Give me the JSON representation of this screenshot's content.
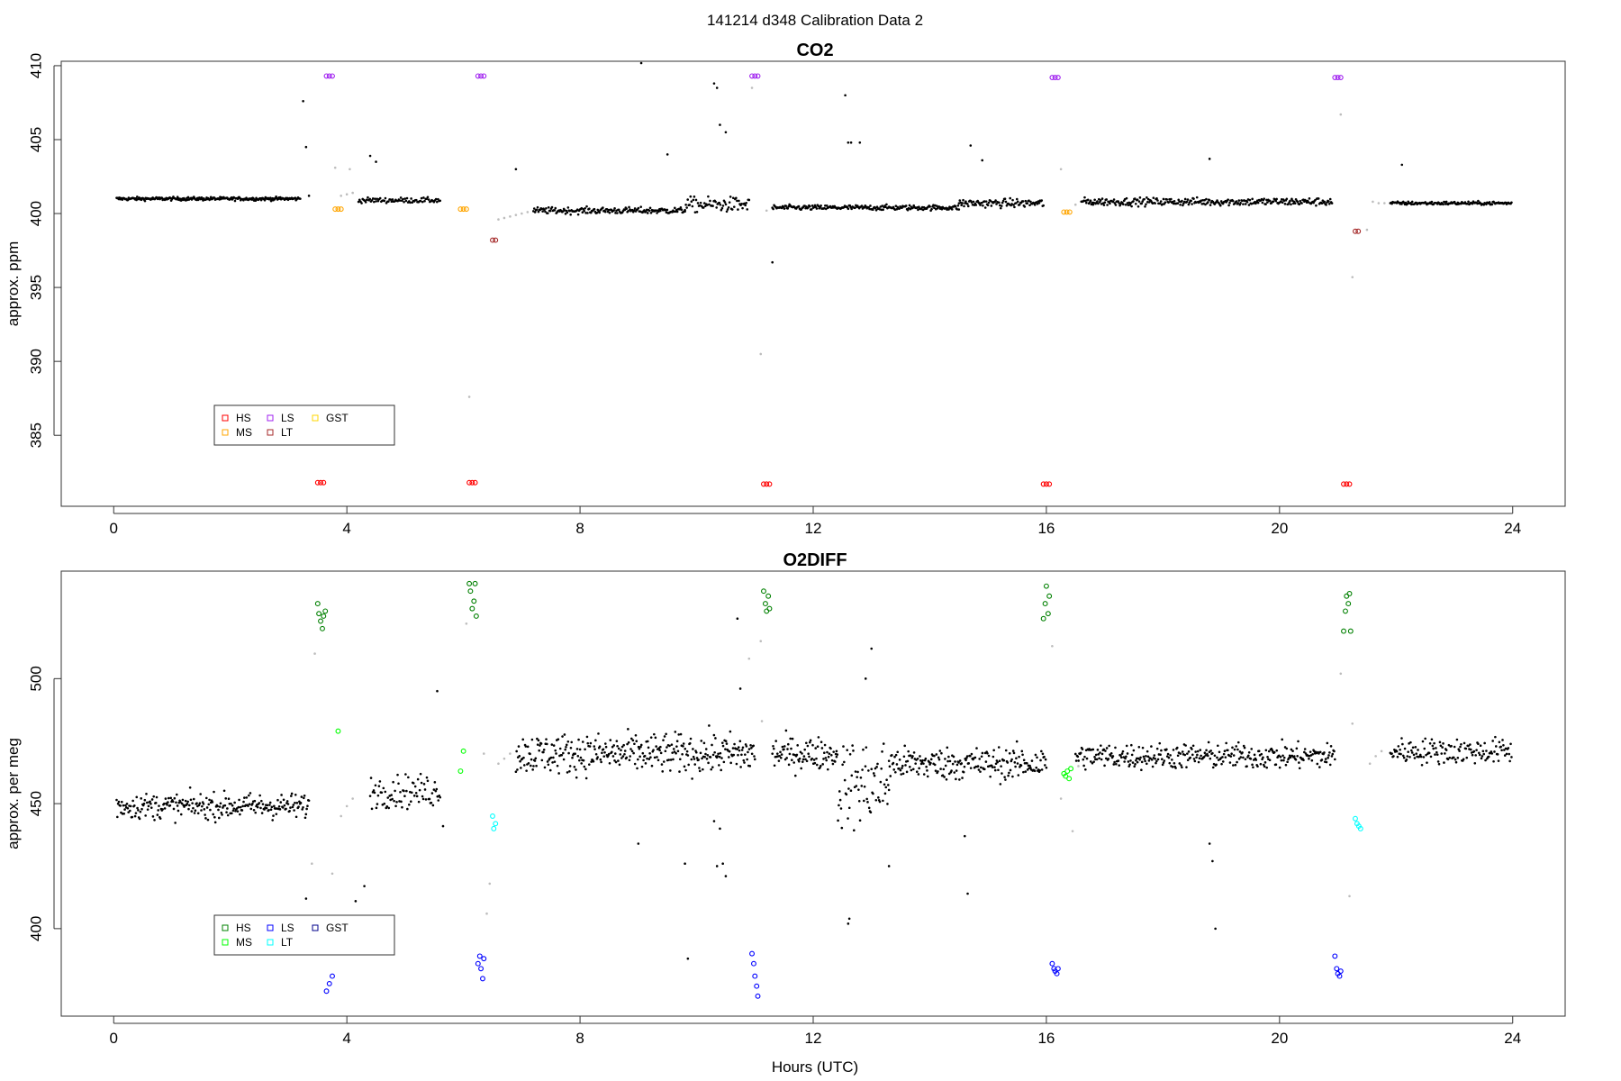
{
  "figure": {
    "suptitle": "141214   d348   Calibration Data 2",
    "xlabel": "Hours (UTC)"
  },
  "chart_data": [
    {
      "type": "scatter",
      "title": "CO2",
      "ylabel": "approx. ppm",
      "xlim": [
        -0.9,
        24.9
      ],
      "ylim": [
        380.2,
        410.3
      ],
      "xticks": [
        "0",
        "4",
        "8",
        "12",
        "16",
        "20",
        "24"
      ],
      "yticks": [
        "385",
        "390",
        "395",
        "400",
        "405",
        "410"
      ],
      "legend": {
        "position": "bottom-left",
        "columns": 3,
        "items": [
          {
            "label": "HS",
            "color": "#ff0000"
          },
          {
            "label": "MS",
            "color": "#ffa500"
          },
          {
            "label": "LS",
            "color": "#a020f0"
          },
          {
            "label": "LT",
            "color": "#a52a2a"
          },
          {
            "label": "GST",
            "color": "#ffd700"
          }
        ]
      },
      "series": [
        {
          "name": "HS",
          "color": "#ff0000",
          "marker": "circle",
          "x": [
            3.5,
            3.55,
            3.6,
            6.1,
            6.15,
            6.2,
            11.15,
            11.2,
            11.25,
            15.95,
            16.0,
            16.05,
            21.1,
            21.15,
            21.2
          ],
          "y": [
            381.8,
            381.8,
            381.8,
            381.8,
            381.8,
            381.8,
            381.7,
            381.7,
            381.7,
            381.7,
            381.7,
            381.7,
            381.7,
            381.7,
            381.7
          ]
        },
        {
          "name": "MS",
          "color": "#ffa500",
          "marker": "circle",
          "x": [
            3.8,
            3.85,
            3.9,
            5.95,
            6.0,
            6.05,
            16.3,
            16.35,
            16.4
          ],
          "y": [
            400.3,
            400.3,
            400.3,
            400.3,
            400.3,
            400.3,
            400.1,
            400.1,
            400.1
          ]
        },
        {
          "name": "LS",
          "color": "#a020f0",
          "marker": "circle",
          "x": [
            3.65,
            3.7,
            3.75,
            6.25,
            6.3,
            6.35,
            10.95,
            11.0,
            11.05,
            16.1,
            16.15,
            16.2,
            20.95,
            21.0,
            21.05
          ],
          "y": [
            409.3,
            409.3,
            409.3,
            409.3,
            409.3,
            409.3,
            409.3,
            409.3,
            409.3,
            409.2,
            409.2,
            409.2,
            409.2,
            409.2,
            409.2
          ]
        },
        {
          "name": "LT",
          "color": "#a52a2a",
          "marker": "circle",
          "x": [
            6.5,
            6.55,
            21.3,
            21.35
          ],
          "y": [
            398.2,
            398.2,
            398.8,
            398.8
          ]
        },
        {
          "name": "data",
          "color": "#000000",
          "marker": "dot",
          "segments": [
            {
              "x0": 0.05,
              "x1": 3.2,
              "level": 401.0,
              "n": 260,
              "noise": 0.08
            },
            {
              "x0": 4.2,
              "x1": 5.6,
              "level": 400.9,
              "n": 80,
              "noise": 0.12
            },
            {
              "x0": 7.2,
              "x1": 9.8,
              "level": 400.2,
              "n": 180,
              "noise": 0.15
            },
            {
              "x0": 9.8,
              "x1": 10.9,
              "level": 400.6,
              "n": 70,
              "noise": 0.35
            },
            {
              "x0": 11.3,
              "x1": 14.5,
              "level": 400.4,
              "n": 220,
              "noise": 0.12
            },
            {
              "x0": 14.5,
              "x1": 15.95,
              "level": 400.7,
              "n": 100,
              "noise": 0.2
            },
            {
              "x0": 16.6,
              "x1": 20.9,
              "level": 400.8,
              "n": 300,
              "noise": 0.18
            },
            {
              "x0": 21.9,
              "x1": 23.98,
              "level": 400.7,
              "n": 150,
              "noise": 0.08
            }
          ],
          "outliers": {
            "x": [
              3.25,
              3.3,
              3.35,
              4.4,
              4.5,
              6.9,
              9.05,
              9.5,
              10.3,
              10.35,
              10.4,
              10.5,
              11.3,
              12.6,
              12.65,
              12.8,
              12.55,
              14.7,
              14.9,
              18.8,
              22.1
            ],
            "y": [
              407.6,
              404.5,
              401.2,
              403.9,
              403.5,
              403.0,
              410.2,
              404.0,
              408.8,
              408.5,
              406.0,
              405.5,
              396.7,
              404.8,
              404.8,
              404.8,
              408.0,
              404.6,
              403.6,
              403.7,
              403.3
            ]
          }
        },
        {
          "name": "transition",
          "color": "#bdbdbd",
          "marker": "dot",
          "x": [
            3.9,
            4.0,
            4.1,
            6.6,
            6.7,
            6.8,
            6.9,
            7.0,
            7.1,
            11.1,
            11.2,
            16.5,
            16.6,
            21.5,
            21.6,
            21.7,
            21.8,
            10.95,
            6.1,
            21.25,
            16.25,
            3.8,
            4.05,
            21.05
          ],
          "y": [
            401.2,
            401.3,
            401.4,
            399.6,
            399.7,
            399.8,
            399.9,
            400.0,
            400.1,
            390.5,
            400.2,
            400.6,
            400.8,
            398.9,
            400.8,
            400.7,
            400.7,
            408.5,
            387.6,
            395.7,
            403.0,
            403.1,
            403.0,
            406.7
          ]
        }
      ]
    },
    {
      "type": "scatter",
      "title": "O2DIFF",
      "ylabel": "approx. per meg",
      "xlim": [
        -0.9,
        24.9
      ],
      "ylim": [
        365,
        543
      ],
      "xticks": [
        "0",
        "4",
        "8",
        "12",
        "16",
        "20",
        "24"
      ],
      "yticks": [
        "400",
        "450",
        "500"
      ],
      "legend": {
        "position": "bottom-left",
        "columns": 3,
        "items": [
          {
            "label": "HS",
            "color": "#008000"
          },
          {
            "label": "MS",
            "color": "#00ff00"
          },
          {
            "label": "LS",
            "color": "#0000ff"
          },
          {
            "label": "LT",
            "color": "#00ffff"
          },
          {
            "label": "GST",
            "color": "#00008b"
          }
        ]
      },
      "series": [
        {
          "name": "HS",
          "color": "#008000",
          "marker": "circle",
          "x": [
            3.5,
            3.52,
            3.55,
            3.58,
            3.6,
            3.63,
            6.1,
            6.12,
            6.15,
            6.18,
            6.2,
            6.22,
            11.15,
            11.18,
            11.2,
            11.23,
            11.25,
            15.95,
            15.98,
            16.0,
            16.03,
            16.05,
            21.1,
            21.13,
            21.15,
            21.18,
            21.2,
            21.22
          ],
          "y": [
            530,
            526,
            523,
            520,
            525,
            527,
            538,
            535,
            528,
            531,
            538,
            525,
            535,
            530,
            527,
            533,
            528,
            524,
            530,
            537,
            526,
            533,
            519,
            527,
            533,
            530,
            534,
            519
          ],
          "hollow": true
        },
        {
          "name": "MS",
          "color": "#00ff00",
          "marker": "circle",
          "x": [
            3.85,
            5.95,
            6.0,
            16.3,
            16.33,
            16.36,
            16.39,
            16.42
          ],
          "y": [
            479,
            463,
            471,
            462,
            461,
            463,
            460,
            464
          ],
          "hollow": true
        },
        {
          "name": "LS",
          "color": "#0000ff",
          "marker": "circle",
          "x": [
            3.65,
            3.7,
            3.75,
            6.25,
            6.28,
            6.3,
            6.33,
            6.35,
            10.95,
            10.98,
            11.0,
            11.03,
            11.05,
            16.1,
            16.13,
            16.15,
            16.18,
            16.2,
            20.95,
            20.98,
            21.0,
            21.03,
            21.05
          ],
          "y": [
            375,
            378,
            381,
            386,
            389,
            384,
            380,
            388,
            390,
            386,
            381,
            377,
            373,
            386,
            384,
            383,
            382,
            384,
            389,
            384,
            382,
            381,
            383
          ],
          "hollow": true
        },
        {
          "name": "LT",
          "color": "#00ffff",
          "marker": "circle",
          "x": [
            6.5,
            6.52,
            6.55,
            21.3,
            21.33,
            21.36,
            21.39
          ],
          "y": [
            445,
            440,
            442,
            444,
            442,
            441,
            440
          ],
          "hollow": true
        },
        {
          "name": "data",
          "color": "#000000",
          "marker": "dot",
          "segments": [
            {
              "x0": 0.05,
              "x1": 3.35,
              "level": 449,
              "n": 260,
              "noise": 3.5
            },
            {
              "x0": 4.4,
              "x1": 5.6,
              "level": 455,
              "n": 80,
              "noise": 4.5
            },
            {
              "x0": 6.9,
              "x1": 11.0,
              "level": 470,
              "n": 340,
              "noise": 5.5
            },
            {
              "x0": 11.3,
              "x1": 12.4,
              "level": 470,
              "n": 90,
              "noise": 4.5
            },
            {
              "x0": 12.4,
              "x1": 13.3,
              "level": 458,
              "n": 70,
              "noise": 12
            },
            {
              "x0": 13.3,
              "x1": 16.0,
              "level": 466,
              "n": 220,
              "noise": 4.5
            },
            {
              "x0": 16.5,
              "x1": 20.95,
              "level": 469,
              "n": 340,
              "noise": 3.5
            },
            {
              "x0": 21.9,
              "x1": 23.98,
              "level": 471,
              "n": 150,
              "noise": 3.5
            }
          ],
          "outliers": {
            "x": [
              3.3,
              4.3,
              4.15,
              5.55,
              5.65,
              9.0,
              9.8,
              9.85,
              10.3,
              10.35,
              10.5,
              10.7,
              10.75,
              12.6,
              12.62,
              12.9,
              13.0,
              13.3,
              14.6,
              14.65,
              18.8,
              18.85,
              18.9,
              10.4,
              10.45
            ],
            "y": [
              412,
              417,
              411,
              495,
              441,
              434,
              426,
              388,
              443,
              425,
              421,
              524,
              496,
              402,
              404,
              500,
              512,
              425,
              437,
              414,
              434,
              427,
              400,
              440,
              426
            ]
          }
        },
        {
          "name": "transition",
          "color": "#bdbdbd",
          "marker": "dot",
          "x": [
            3.45,
            3.9,
            4.0,
            4.1,
            6.05,
            6.35,
            6.6,
            6.7,
            6.8,
            11.1,
            11.12,
            16.1,
            16.25,
            16.55,
            21.05,
            21.25,
            21.55,
            21.65,
            21.75,
            3.4,
            3.75,
            6.45,
            10.9,
            21.2,
            16.45,
            6.4
          ],
          "y": [
            510,
            445,
            449,
            452,
            522,
            470,
            466,
            468,
            470,
            515,
            483,
            513,
            452,
            465,
            502,
            482,
            466,
            469,
            471,
            426,
            422,
            418,
            508,
            413,
            439,
            406
          ]
        }
      ]
    }
  ]
}
